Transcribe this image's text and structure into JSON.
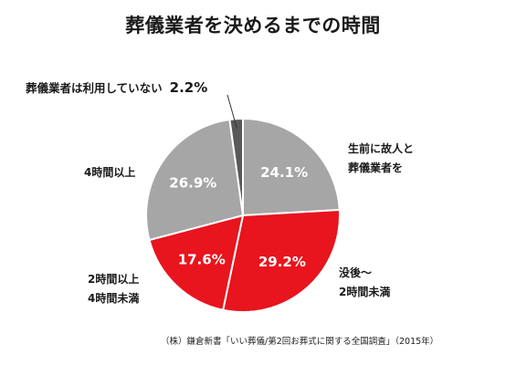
{
  "title": "葬儀業者を決めるまでの時間",
  "source": "（株）鎌倉新書「いい葬儀/第2回お葬式に関する全国調査」（2015年）",
  "chart_data": {
    "type": "pie",
    "title": "葬儀業者を決めるまでの時間",
    "start": "12 o'clock, clockwise",
    "slices": [
      {
        "label_lines": [
          "生前に故人と",
          "葬儀業者を"
        ],
        "value": 24.1,
        "display": "24.1%",
        "color": "#a6a6a6"
      },
      {
        "label_lines": [
          "没後～",
          "2時間未満"
        ],
        "value": 29.2,
        "display": "29.2%",
        "color": "#e8141e"
      },
      {
        "label_lines": [
          "2時間以上",
          "4時間未満"
        ],
        "value": 17.6,
        "display": "17.6%",
        "color": "#e8141e"
      },
      {
        "label_lines": [
          "4時間以上"
        ],
        "value": 26.9,
        "display": "26.9%",
        "color": "#a6a6a6"
      },
      {
        "label_lines": [
          "葬儀業者は利用していない"
        ],
        "value": 2.2,
        "display": "2.2%",
        "color": "#595959"
      }
    ]
  }
}
